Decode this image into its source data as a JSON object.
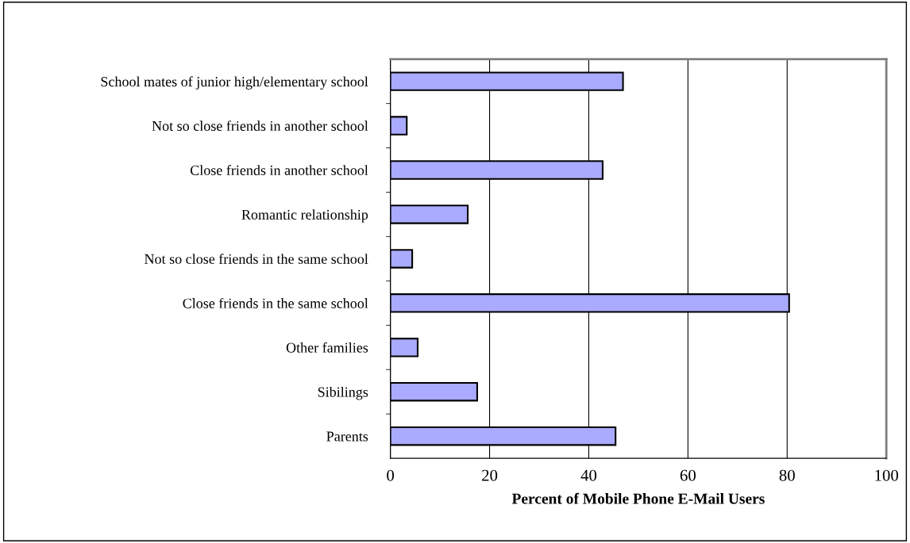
{
  "chart_data": {
    "type": "bar",
    "orientation": "horizontal",
    "xlabel": "Percent of Mobile Phone E-Mail Users",
    "categories": [
      "School mates of junior high/elementary school",
      "Not so close friends in another school",
      "Close friends in another school",
      "Romantic relationship",
      "Not so close friends in the same school",
      "Close friends in the same school",
      "Other families",
      "Sibilings",
      "Parents"
    ],
    "values": [
      46.9,
      3.3,
      42.8,
      15.6,
      4.4,
      80.4,
      5.5,
      17.5,
      45.4
    ],
    "color": "#aaaaff",
    "xlim": [
      0,
      100
    ],
    "xticks": [
      0,
      20,
      40,
      60,
      80,
      100
    ],
    "grid": "x"
  }
}
